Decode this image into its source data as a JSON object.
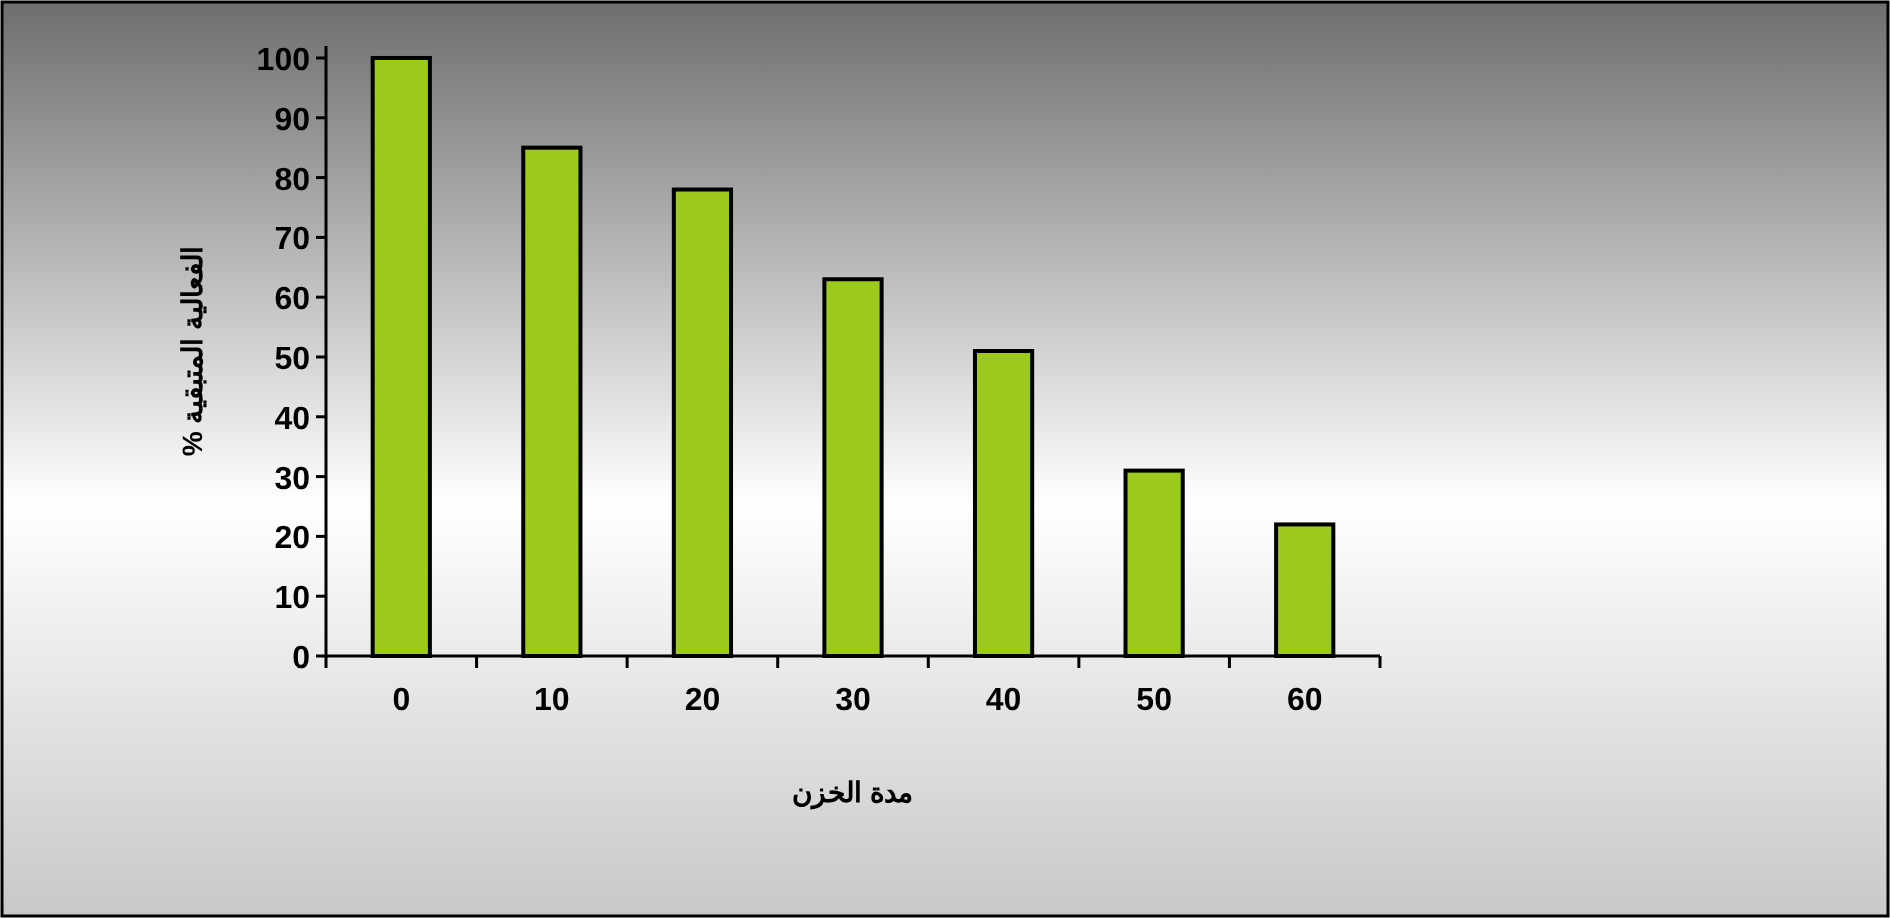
{
  "chart_data": {
    "type": "bar",
    "xlabel": "مدة الخزن",
    "ylabel": "الفعالية المتبقية %",
    "categories": [
      "0",
      "10",
      "20",
      "30",
      "40",
      "50",
      "60"
    ],
    "values": [
      100,
      85,
      78,
      63,
      51,
      31,
      22
    ],
    "color": "#9cc91e",
    "ylim": [
      0,
      102
    ],
    "yticks": [
      0,
      10,
      20,
      30,
      40,
      50,
      60,
      70,
      80,
      90,
      100
    ],
    "grid": false
  }
}
